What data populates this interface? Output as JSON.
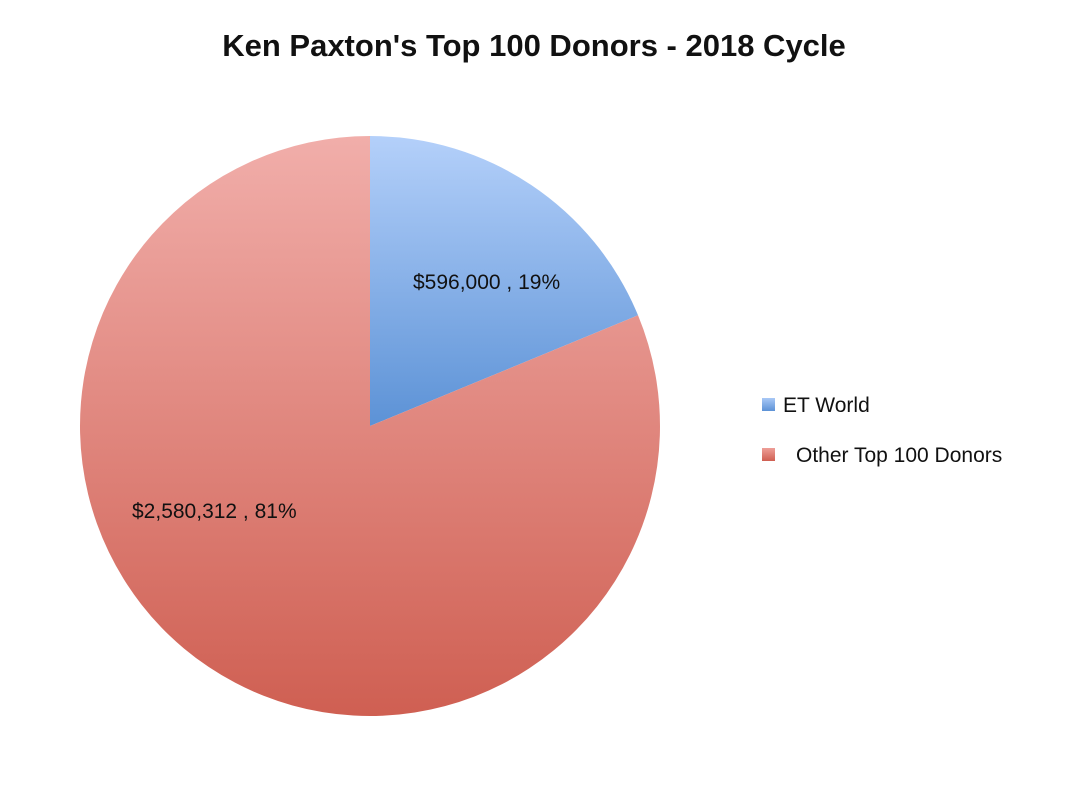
{
  "chart_data": {
    "type": "pie",
    "title": "Ken Paxton's Top 100 Donors - 2018 Cycle",
    "slices": [
      {
        "name": "ET World",
        "value": 596000,
        "percent": 19,
        "label": "$596,000 , 19%",
        "color": "#7fa8e6"
      },
      {
        "name": "Other Top 100 Donors",
        "value": 2580312,
        "percent": 81,
        "label": "$2,580,312 , 81%",
        "color": "#de7b72"
      }
    ],
    "legend_position": "right"
  }
}
